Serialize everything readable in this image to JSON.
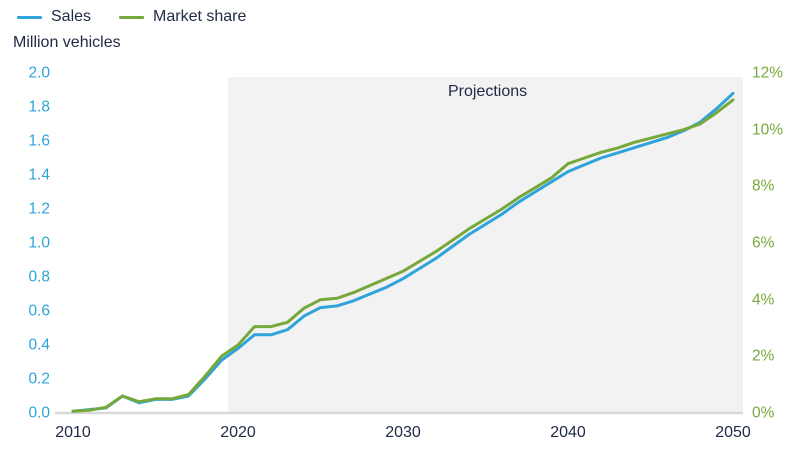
{
  "accent_colors": {
    "sales_blue": "#2ea3dc",
    "market_green": "#77a83c",
    "text_navy": "#212b46",
    "projection_shade": "#f2f2f2",
    "axis_line_gray": "#d8d8d8"
  },
  "chart_data": {
    "type": "line",
    "left_axis_label": "Million vehicles",
    "projection_label": "Projections",
    "projection_start_year": 2019.4,
    "x": [
      2010,
      2011,
      2012,
      2013,
      2014,
      2015,
      2016,
      2017,
      2018,
      2019,
      2020,
      2021,
      2022,
      2023,
      2024,
      2025,
      2026,
      2027,
      2028,
      2029,
      2030,
      2031,
      2032,
      2033,
      2034,
      2035,
      2036,
      2037,
      2038,
      2039,
      2040,
      2041,
      2042,
      2043,
      2044,
      2045,
      2046,
      2047,
      2048,
      2049,
      2050
    ],
    "series": [
      {
        "name": "Sales",
        "axis": "left",
        "unit": "million vehicles",
        "color": "#2ea3dc",
        "values": [
          0.01,
          0.02,
          0.03,
          0.1,
          0.06,
          0.08,
          0.08,
          0.1,
          0.2,
          0.31,
          0.38,
          0.46,
          0.46,
          0.49,
          0.57,
          0.62,
          0.63,
          0.66,
          0.7,
          0.74,
          0.79,
          0.85,
          0.91,
          0.98,
          1.05,
          1.11,
          1.17,
          1.24,
          1.3,
          1.36,
          1.42,
          1.46,
          1.5,
          1.53,
          1.56,
          1.59,
          1.62,
          1.66,
          1.71,
          1.79,
          1.88
        ]
      },
      {
        "name": "Market share",
        "axis": "right",
        "unit": "%",
        "color": "#77a83c",
        "values": [
          0.06,
          0.1,
          0.2,
          0.6,
          0.4,
          0.5,
          0.5,
          0.65,
          1.3,
          2.0,
          2.4,
          3.05,
          3.05,
          3.2,
          3.7,
          4.0,
          4.05,
          4.25,
          4.5,
          4.75,
          5.0,
          5.35,
          5.7,
          6.1,
          6.5,
          6.85,
          7.2,
          7.6,
          7.95,
          8.3,
          8.8,
          9.0,
          9.2,
          9.35,
          9.55,
          9.7,
          9.85,
          10.0,
          10.2,
          10.6,
          11.05
        ]
      }
    ],
    "left_axis": {
      "range": [
        0,
        2.0
      ],
      "tick_labels": [
        "2.0",
        "1.8",
        "1.6",
        "1.4",
        "1.2",
        "1.0",
        "0.8",
        "0.6",
        "0.4",
        "0.2",
        "0.0"
      ],
      "color": "#2ea3dc"
    },
    "right_axis": {
      "range": [
        0,
        12
      ],
      "tick_labels": [
        "12%",
        "10%",
        "8%",
        "6%",
        "4%",
        "2%",
        "0%"
      ],
      "color": "#77a83c"
    },
    "x_axis": {
      "tick_years": [
        2010,
        2020,
        2030,
        2040,
        2050
      ],
      "tick_labels": [
        "2010",
        "2020",
        "2030",
        "2040",
        "2050"
      ]
    },
    "grid": "off",
    "legend_position": "top-left"
  }
}
